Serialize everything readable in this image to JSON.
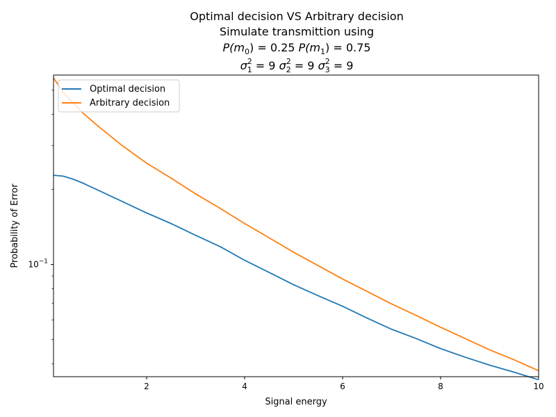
{
  "chart_data": {
    "type": "line",
    "title_lines": [
      "Optimal decision VS Arbitrary decision",
      "Simulate transmittion using"
    ],
    "title_probs": {
      "p0_label": "P(m",
      "p0_sub": "0",
      "p0_value": ") = 0.25 ",
      "p1_label": "P(m",
      "p1_sub": "1",
      "p1_value": ") = 0.75"
    },
    "title_sigmas": {
      "s1_sub": "1",
      "s1_value": " = 9 ",
      "s2_sub": "2",
      "s2_value": " = 9 ",
      "s3_sub": "3",
      "s3_value": " = 9",
      "sigma_symbol": "σ",
      "sup": "2"
    },
    "xlabel": "Signal energy",
    "ylabel": "Probability of Error",
    "xlim": [
      0.1,
      10
    ],
    "ylim": [
      0.0355,
      0.575
    ],
    "yscale": "log",
    "grid": false,
    "legend_position": "upper-left",
    "x_ticks": [
      2,
      4,
      6,
      8,
      10
    ],
    "x_tick_labels": [
      "2",
      "4",
      "6",
      "8",
      "10"
    ],
    "y_major_tick": {
      "value": 0.1,
      "base": "10",
      "exp": "−1"
    },
    "y_minor_ticks": [
      0.04,
      0.05,
      0.06,
      0.07,
      0.08,
      0.09,
      0.2,
      0.3,
      0.4,
      0.5
    ],
    "series": [
      {
        "name": "Optimal decision",
        "color": "#1f77b4",
        "points": [
          [
            0.1,
            0.228
          ],
          [
            0.3,
            0.226
          ],
          [
            0.5,
            0.22
          ],
          [
            0.7,
            0.212
          ],
          [
            1.0,
            0.199
          ],
          [
            1.5,
            0.179
          ],
          [
            2.0,
            0.161
          ],
          [
            2.5,
            0.146
          ],
          [
            3.0,
            0.131
          ],
          [
            3.5,
            0.118
          ],
          [
            4.0,
            0.104
          ],
          [
            4.5,
            0.093
          ],
          [
            5.0,
            0.083
          ],
          [
            5.5,
            0.075
          ],
          [
            6.0,
            0.068
          ],
          [
            6.5,
            0.061
          ],
          [
            7.0,
            0.055
          ],
          [
            7.5,
            0.0505
          ],
          [
            8.0,
            0.046
          ],
          [
            8.5,
            0.0425
          ],
          [
            9.0,
            0.0395
          ],
          [
            9.5,
            0.037
          ],
          [
            10.0,
            0.0345
          ]
        ]
      },
      {
        "name": "Arbitrary decision",
        "color": "#ff7f0e",
        "points": [
          [
            0.1,
            0.56
          ],
          [
            0.3,
            0.49
          ],
          [
            0.5,
            0.445
          ],
          [
            0.7,
            0.405
          ],
          [
            1.0,
            0.36
          ],
          [
            1.5,
            0.3
          ],
          [
            2.0,
            0.255
          ],
          [
            2.5,
            0.222
          ],
          [
            3.0,
            0.192
          ],
          [
            3.5,
            0.168
          ],
          [
            4.0,
            0.146
          ],
          [
            4.5,
            0.128
          ],
          [
            5.0,
            0.112
          ],
          [
            5.5,
            0.099
          ],
          [
            6.0,
            0.0875
          ],
          [
            6.5,
            0.078
          ],
          [
            7.0,
            0.0695
          ],
          [
            7.5,
            0.0625
          ],
          [
            8.0,
            0.056
          ],
          [
            8.5,
            0.0505
          ],
          [
            9.0,
            0.0455
          ],
          [
            9.5,
            0.0415
          ],
          [
            10.0,
            0.0375
          ]
        ]
      }
    ]
  }
}
